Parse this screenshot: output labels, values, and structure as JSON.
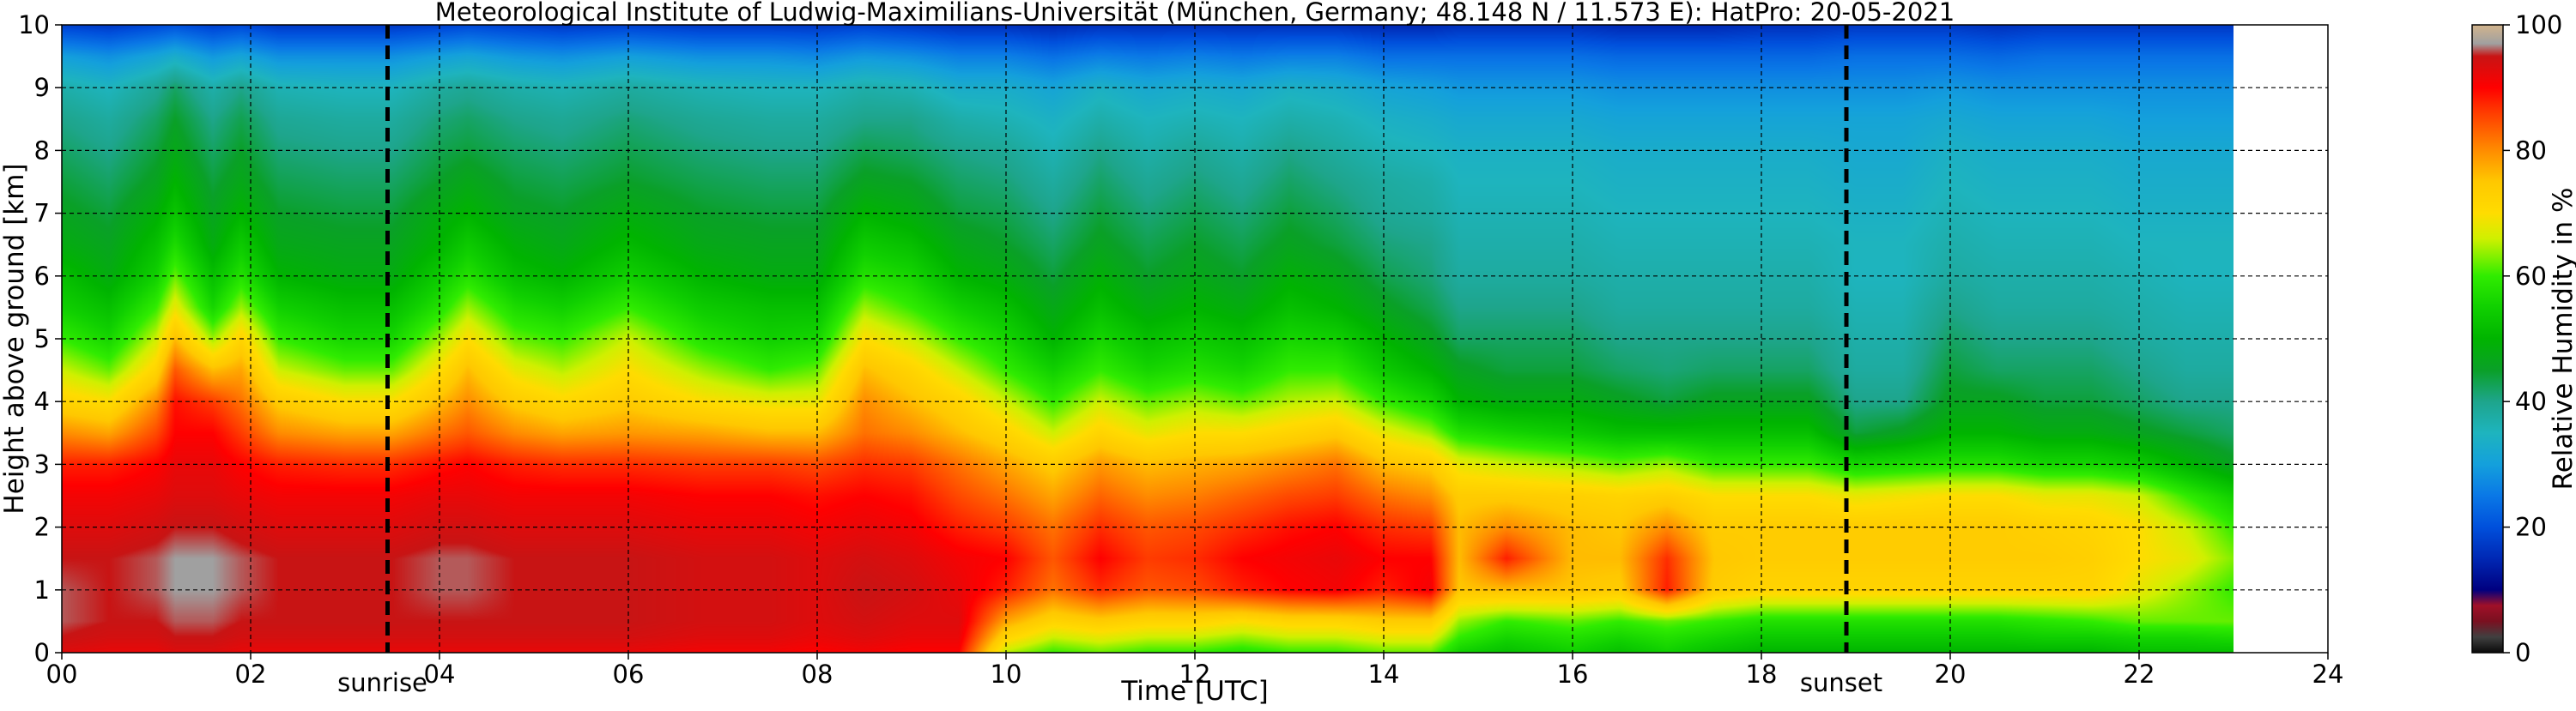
{
  "chart_data": {
    "type": "heatmap",
    "title": "Meteorological Institute of Ludwig-Maximilians-Universität (München, Germany; 48.148 N / 11.573 E):    HatPro: 20-05-2021",
    "xlabel": "Time [UTC]",
    "ylabel": "Height above ground [km]",
    "colorbar_label": "Relative Humidity in %",
    "xlim": [
      0,
      24
    ],
    "ylim": [
      0,
      10
    ],
    "data_x_extent": [
      0,
      23
    ],
    "x_tick_values": [
      0,
      2,
      4,
      6,
      8,
      10,
      12,
      14,
      16,
      18,
      20,
      22,
      24
    ],
    "x_tick_labels": [
      "00",
      "02",
      "04",
      "06",
      "08",
      "10",
      "12",
      "14",
      "16",
      "18",
      "20",
      "22",
      "24"
    ],
    "y_tick_values": [
      0,
      1,
      2,
      3,
      4,
      5,
      6,
      7,
      8,
      9,
      10
    ],
    "y_tick_labels": [
      "0",
      "1",
      "2",
      "3",
      "4",
      "5",
      "6",
      "7",
      "8",
      "9",
      "10"
    ],
    "colorbar_range": [
      0,
      100
    ],
    "colorbar_tick_values": [
      0,
      20,
      40,
      60,
      80,
      100
    ],
    "colorbar_tick_labels": [
      "0",
      "20",
      "40",
      "60",
      "80",
      "100"
    ],
    "colorbar_stops": [
      {
        "v": 0,
        "color": "#0a0a0a"
      },
      {
        "v": 2.5,
        "color": "#404040"
      },
      {
        "v": 5,
        "color": "#7a1020"
      },
      {
        "v": 7.5,
        "color": "#a01028"
      },
      {
        "v": 10,
        "color": "#000080"
      },
      {
        "v": 15,
        "color": "#0028b4"
      },
      {
        "v": 20,
        "color": "#0050dc"
      },
      {
        "v": 25,
        "color": "#0a78e6"
      },
      {
        "v": 30,
        "color": "#14a0dc"
      },
      {
        "v": 35,
        "color": "#1eb4be"
      },
      {
        "v": 40,
        "color": "#1ea58c"
      },
      {
        "v": 45,
        "color": "#0aa028"
      },
      {
        "v": 50,
        "color": "#00b400"
      },
      {
        "v": 55,
        "color": "#10d000"
      },
      {
        "v": 60,
        "color": "#30ec00"
      },
      {
        "v": 63,
        "color": "#80f000"
      },
      {
        "v": 66,
        "color": "#d0f000"
      },
      {
        "v": 70,
        "color": "#ffdc00"
      },
      {
        "v": 75,
        "color": "#ffc800"
      },
      {
        "v": 80,
        "color": "#ff8c00"
      },
      {
        "v": 86,
        "color": "#ff3c00"
      },
      {
        "v": 90,
        "color": "#ff0000"
      },
      {
        "v": 95,
        "color": "#c81414"
      },
      {
        "v": 97,
        "color": "#a0a0a0"
      },
      {
        "v": 100,
        "color": "#d2b48c"
      }
    ],
    "annotations": [
      {
        "label": "sunrise",
        "x": 3.45
      },
      {
        "label": "sunset",
        "x": 18.9
      }
    ],
    "grid": true,
    "time_samples": [
      0,
      0.5,
      1,
      1.2,
      1.6,
      1.9,
      2.3,
      3,
      3.5,
      4,
      4.3,
      4.8,
      5.3,
      6,
      6.8,
      7.5,
      8,
      8.5,
      9,
      9.5,
      10,
      10.5,
      11,
      11.5,
      12,
      12.5,
      13,
      13.5,
      14,
      14.5,
      14.8,
      15.3,
      16,
      16.5,
      17,
      17.5,
      18,
      18.5,
      19,
      19.5,
      20,
      20.5,
      21,
      21.5,
      22,
      22.5,
      23
    ],
    "height_levels": [
      0,
      0.25,
      0.5,
      1,
      1.5,
      2,
      2.5,
      3,
      3.5,
      4,
      4.5,
      5,
      5.5,
      6,
      6.5,
      7,
      7.5,
      8,
      8.5,
      9,
      9.5,
      10
    ],
    "rh_values": [
      [
        93,
        92,
        92,
        93,
        93,
        92,
        92,
        92,
        92,
        92,
        92,
        92,
        92,
        92,
        91,
        91,
        90,
        91,
        90,
        90,
        65,
        60,
        62,
        60,
        60,
        58,
        60,
        60,
        62,
        62,
        55,
        52,
        55,
        52,
        55,
        52,
        50,
        50,
        50,
        50,
        50,
        50,
        50,
        50,
        52,
        52,
        52
      ],
      [
        95,
        94,
        94,
        95,
        95,
        94,
        94,
        94,
        94,
        94,
        94,
        94,
        94,
        94,
        93,
        93,
        92,
        93,
        92,
        92,
        72,
        66,
        68,
        66,
        66,
        64,
        66,
        66,
        68,
        68,
        60,
        56,
        58,
        56,
        58,
        56,
        54,
        54,
        54,
        54,
        54,
        54,
        55,
        55,
        56,
        56,
        57
      ],
      [
        96,
        95,
        95,
        96,
        96,
        95,
        95,
        95,
        95,
        95,
        95,
        95,
        95,
        95,
        94,
        94,
        93,
        94,
        93,
        93,
        78,
        72,
        74,
        72,
        72,
        70,
        72,
        72,
        74,
        74,
        64,
        60,
        62,
        60,
        62,
        60,
        58,
        58,
        58,
        58,
        58,
        58,
        59,
        60,
        62,
        62,
        62
      ],
      [
        96,
        95,
        96,
        97,
        97,
        96,
        95,
        95,
        95,
        96,
        96,
        95,
        95,
        95,
        94,
        94,
        93,
        95,
        94,
        92,
        88,
        82,
        87,
        84,
        85,
        88,
        90,
        91,
        88,
        91,
        75,
        76,
        75,
        74,
        88,
        74,
        72,
        72,
        72,
        72,
        72,
        72,
        72,
        72,
        68,
        64,
        60
      ],
      [
        95,
        95,
        96,
        97,
        97,
        96,
        95,
        95,
        95,
        96,
        96,
        95,
        95,
        95,
        94,
        94,
        93,
        94,
        93,
        91,
        90,
        84,
        90,
        86,
        87,
        90,
        91,
        92,
        90,
        90,
        76,
        88,
        76,
        76,
        87,
        75,
        74,
        74,
        74,
        74,
        74,
        74,
        74,
        73,
        70,
        68,
        63
      ],
      [
        93,
        93,
        94,
        95,
        95,
        94,
        93,
        93,
        93,
        94,
        94,
        93,
        93,
        93,
        92,
        92,
        91,
        92,
        91,
        88,
        86,
        82,
        87,
        84,
        85,
        87,
        89,
        90,
        87,
        86,
        76,
        80,
        76,
        75,
        80,
        74,
        74,
        74,
        74,
        74,
        74,
        74,
        73,
        72,
        70,
        66,
        60
      ],
      [
        91,
        91,
        92,
        93,
        93,
        92,
        91,
        91,
        91,
        92,
        92,
        91,
        91,
        91,
        90,
        90,
        89,
        90,
        89,
        85,
        82,
        78,
        83,
        80,
        81,
        83,
        85,
        86,
        82,
        80,
        74,
        74,
        73,
        72,
        73,
        70,
        70,
        70,
        68,
        69,
        70,
        70,
        68,
        68,
        66,
        60,
        55
      ],
      [
        88,
        88,
        90,
        92,
        92,
        90,
        88,
        87,
        87,
        89,
        90,
        88,
        87,
        87,
        86,
        86,
        85,
        87,
        86,
        82,
        78,
        74,
        79,
        76,
        77,
        78,
        80,
        82,
        76,
        74,
        68,
        66,
        64,
        62,
        64,
        60,
        60,
        60,
        56,
        57,
        58,
        58,
        56,
        56,
        54,
        50,
        46
      ],
      [
        80,
        78,
        85,
        90,
        90,
        86,
        80,
        78,
        78,
        82,
        84,
        80,
        78,
        79,
        78,
        76,
        76,
        82,
        80,
        76,
        72,
        66,
        72,
        68,
        70,
        70,
        72,
        74,
        68,
        64,
        58,
        56,
        54,
        52,
        52,
        52,
        52,
        52,
        44,
        46,
        50,
        50,
        48,
        48,
        46,
        44,
        42
      ],
      [
        72,
        70,
        80,
        89,
        86,
        82,
        74,
        70,
        70,
        76,
        80,
        74,
        71,
        74,
        70,
        68,
        68,
        80,
        76,
        72,
        66,
        60,
        66,
        62,
        64,
        62,
        65,
        66,
        60,
        56,
        50,
        48,
        48,
        46,
        44,
        46,
        46,
        46,
        40,
        40,
        46,
        46,
        44,
        44,
        42,
        40,
        40
      ],
      [
        66,
        62,
        72,
        84,
        76,
        78,
        66,
        62,
        62,
        70,
        76,
        68,
        65,
        70,
        64,
        60,
        62,
        76,
        72,
        66,
        60,
        55,
        60,
        56,
        58,
        56,
        60,
        60,
        54,
        50,
        46,
        44,
        44,
        42,
        41,
        42,
        42,
        42,
        38,
        38,
        44,
        42,
        42,
        42,
        40,
        38,
        38
      ],
      [
        60,
        56,
        66,
        76,
        64,
        72,
        60,
        56,
        56,
        64,
        70,
        62,
        60,
        66,
        58,
        55,
        56,
        70,
        66,
        60,
        56,
        50,
        56,
        52,
        54,
        52,
        56,
        55,
        50,
        46,
        42,
        42,
        42,
        40,
        40,
        40,
        40,
        40,
        37,
        37,
        42,
        40,
        40,
        40,
        38,
        37,
        37
      ],
      [
        55,
        52,
        60,
        68,
        56,
        64,
        55,
        52,
        52,
        58,
        64,
        57,
        55,
        60,
        54,
        52,
        52,
        64,
        60,
        55,
        52,
        47,
        52,
        48,
        50,
        48,
        52,
        50,
        46,
        43,
        40,
        40,
        40,
        38,
        38,
        38,
        38,
        38,
        36,
        36,
        40,
        38,
        38,
        38,
        37,
        36,
        36
      ],
      [
        52,
        48,
        55,
        62,
        52,
        58,
        50,
        48,
        48,
        54,
        58,
        52,
        50,
        55,
        50,
        48,
        48,
        58,
        56,
        50,
        48,
        44,
        49,
        45,
        47,
        45,
        49,
        47,
        43,
        41,
        38,
        38,
        38,
        37,
        37,
        37,
        37,
        37,
        35,
        35,
        38,
        37,
        37,
        37,
        36,
        35,
        35
      ],
      [
        48,
        46,
        52,
        57,
        48,
        54,
        47,
        46,
        46,
        50,
        54,
        49,
        47,
        51,
        47,
        46,
        46,
        54,
        52,
        47,
        45,
        42,
        46,
        43,
        45,
        43,
        46,
        44,
        41,
        40,
        37,
        37,
        37,
        36,
        36,
        36,
        36,
        36,
        35,
        35,
        37,
        36,
        36,
        36,
        35,
        35,
        35
      ],
      [
        46,
        44,
        49,
        53,
        46,
        50,
        45,
        44,
        44,
        48,
        50,
        46,
        45,
        48,
        45,
        44,
        44,
        50,
        48,
        44,
        43,
        40,
        44,
        41,
        43,
        41,
        44,
        42,
        39,
        38,
        36,
        36,
        36,
        35,
        35,
        35,
        35,
        35,
        34,
        34,
        36,
        35,
        35,
        35,
        34,
        34,
        34
      ],
      [
        44,
        42,
        46,
        50,
        44,
        47,
        43,
        42,
        42,
        45,
        47,
        44,
        43,
        45,
        43,
        42,
        42,
        46,
        45,
        42,
        41,
        38,
        42,
        39,
        41,
        39,
        42,
        40,
        38,
        37,
        35,
        35,
        35,
        34,
        34,
        34,
        34,
        34,
        33,
        33,
        35,
        34,
        34,
        34,
        33,
        33,
        33
      ],
      [
        42,
        40,
        44,
        47,
        42,
        45,
        41,
        40,
        40,
        43,
        44,
        42,
        41,
        43,
        41,
        40,
        40,
        43,
        42,
        40,
        39,
        36,
        40,
        37,
        39,
        37,
        40,
        38,
        36,
        35,
        34,
        34,
        34,
        33,
        33,
        33,
        33,
        33,
        32,
        32,
        34,
        33,
        33,
        33,
        32,
        32,
        32
      ],
      [
        40,
        38,
        42,
        45,
        40,
        43,
        39,
        38,
        38,
        41,
        42,
        40,
        39,
        41,
        39,
        38,
        38,
        40,
        40,
        37,
        36,
        34,
        37,
        35,
        36,
        35,
        37,
        36,
        34,
        33,
        32,
        32,
        32,
        31,
        31,
        31,
        31,
        31,
        31,
        31,
        32,
        31,
        31,
        31,
        30,
        30,
        30
      ],
      [
        37,
        35,
        39,
        42,
        37,
        40,
        36,
        35,
        35,
        38,
        39,
        37,
        36,
        38,
        36,
        35,
        35,
        37,
        36,
        33,
        33,
        31,
        34,
        32,
        33,
        32,
        34,
        33,
        31,
        30,
        29,
        29,
        29,
        28,
        28,
        28,
        28,
        28,
        28,
        28,
        29,
        28,
        28,
        28,
        28,
        28,
        28
      ],
      [
        30,
        28,
        31,
        33,
        29,
        31,
        28,
        28,
        28,
        30,
        31,
        29,
        28,
        30,
        28,
        28,
        27,
        29,
        28,
        26,
        26,
        24,
        26,
        25,
        26,
        25,
        26,
        26,
        24,
        24,
        24,
        24,
        24,
        23,
        23,
        23,
        23,
        23,
        24,
        24,
        24,
        23,
        24,
        24,
        24,
        24,
        24
      ],
      [
        18,
        17,
        19,
        20,
        18,
        19,
        17,
        17,
        17,
        18,
        19,
        18,
        17,
        18,
        17,
        17,
        17,
        18,
        17,
        16,
        16,
        15,
        16,
        16,
        16,
        16,
        16,
        16,
        15,
        15,
        16,
        16,
        16,
        15,
        15,
        15,
        16,
        16,
        17,
        17,
        17,
        16,
        17,
        17,
        17,
        17,
        17
      ]
    ]
  }
}
